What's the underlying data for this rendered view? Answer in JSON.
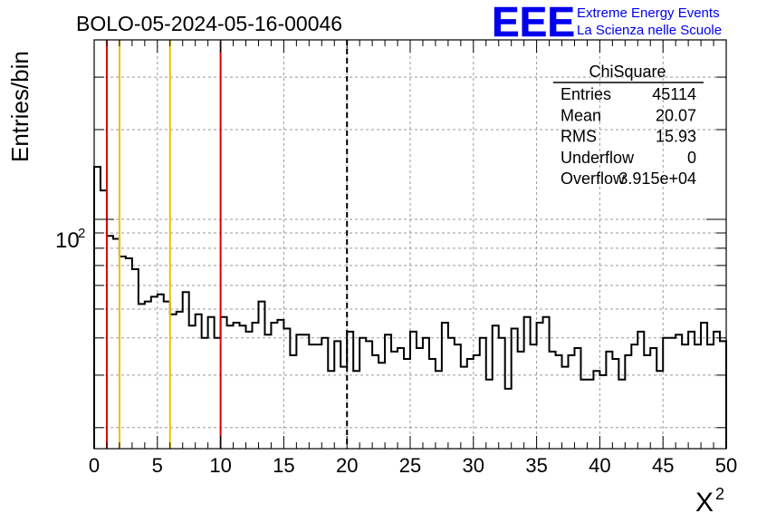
{
  "chart_data": {
    "type": "histogram",
    "title": "BOLO-05-2024-05-16-00046",
    "xlabel": "X",
    "xlabel_superscript": "2",
    "ylabel": "Entries/bin",
    "xlim": [
      0,
      50
    ],
    "ylog": true,
    "ylim": [
      17,
      400
    ],
    "x_ticks": [
      "0",
      "5",
      "10",
      "15",
      "20",
      "25",
      "30",
      "35",
      "40",
      "45",
      "50"
    ],
    "y_tick_label": {
      "base": "10",
      "exponent": "2",
      "value": 100
    },
    "grid": true,
    "bin_width": 0.5,
    "values": [
      150,
      125,
      88,
      86,
      75,
      74,
      68,
      52,
      53,
      55,
      56,
      53,
      48,
      49,
      57,
      44,
      48,
      40,
      47,
      40,
      47,
      44,
      45,
      44,
      42,
      45,
      53,
      41,
      45,
      46,
      43,
      35,
      41,
      41,
      38,
      38,
      40,
      31,
      39,
      32,
      42,
      31,
      40,
      39,
      35,
      33,
      41,
      36,
      37,
      34,
      42,
      37,
      40,
      34,
      31,
      45,
      40,
      38,
      32,
      34,
      35,
      40,
      29,
      44,
      40,
      27,
      43,
      36,
      47,
      38,
      45,
      47,
      36,
      35,
      32,
      35,
      37,
      29,
      29,
      31,
      30,
      36,
      34,
      29,
      35,
      38,
      42,
      35,
      37,
      31,
      40,
      40,
      41,
      38,
      42,
      38,
      45,
      38,
      42,
      39
    ],
    "vlines": [
      {
        "x": 1,
        "color": "#dd0000",
        "style": "solid"
      },
      {
        "x": 2,
        "color": "#f0c000",
        "style": "solid"
      },
      {
        "x": 6,
        "color": "#f0c000",
        "style": "solid"
      },
      {
        "x": 10,
        "color": "#dd0000",
        "style": "solid"
      },
      {
        "x": 20,
        "color": "#000000",
        "style": "dashed"
      }
    ],
    "stats": {
      "title": "ChiSquare",
      "rows": [
        {
          "label": "Entries",
          "value": "45114"
        },
        {
          "label": "Mean",
          "value": "20.07"
        },
        {
          "label": "RMS",
          "value": "15.93"
        },
        {
          "label": "Underflow",
          "value": "0"
        },
        {
          "label": "Overflow",
          "value": "3.915e+04"
        }
      ]
    }
  },
  "logo": {
    "mark": "EEE",
    "line1": "Extreme Energy Events",
    "line2": "La Scienza nelle Scuole",
    "color": "#0000ee"
  },
  "colors": {
    "line": "#000000",
    "grid": "#999999"
  }
}
